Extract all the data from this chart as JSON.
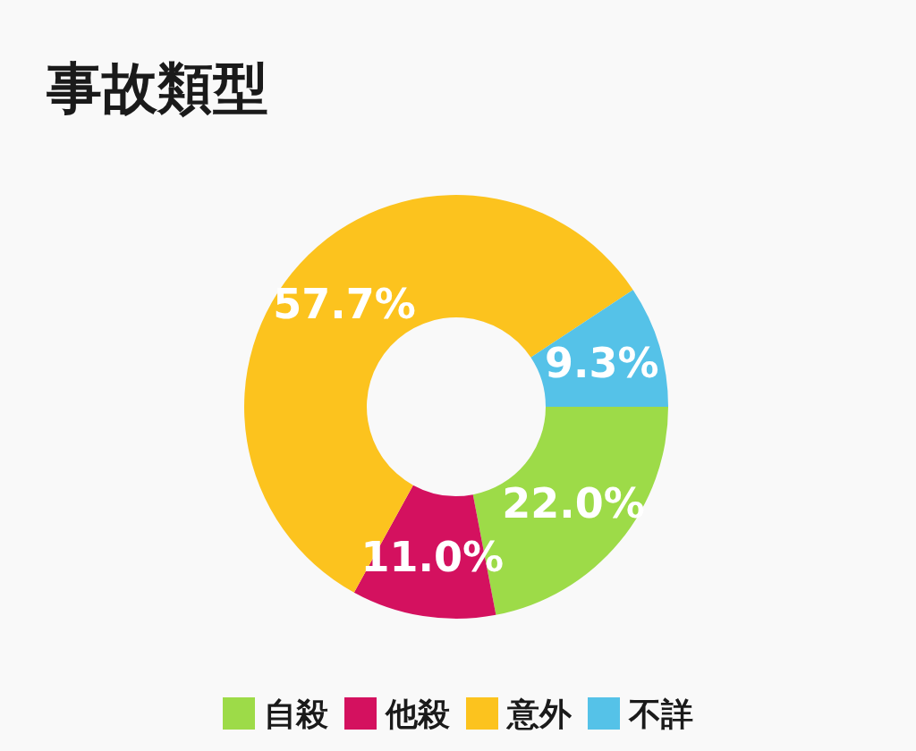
{
  "chart_data": {
    "type": "donut",
    "title": "事故類型",
    "categories": [
      "自殺",
      "他殺",
      "意外",
      "不詳"
    ],
    "values": [
      22.0,
      11.0,
      57.7,
      9.3
    ],
    "value_labels": [
      "22.0%",
      "11.0%",
      "57.7%",
      "9.3%"
    ],
    "colors": [
      "#9ddb48",
      "#d4115f",
      "#fcc31e",
      "#55c2e8"
    ],
    "legend": "bottom"
  }
}
